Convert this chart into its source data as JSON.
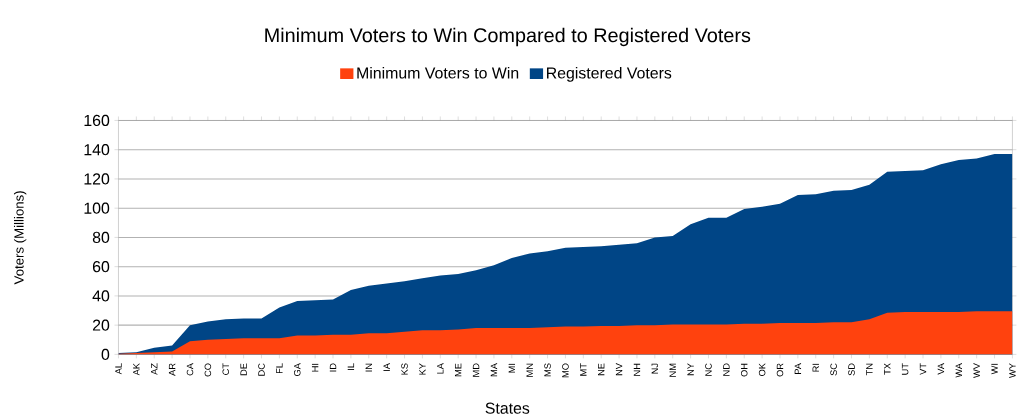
{
  "chart_data": {
    "type": "area",
    "title": "Minimum Voters to Win Compared to Registered Voters",
    "xlabel": "States",
    "ylabel": "Voters (Millions)",
    "categories": [
      "AL",
      "AK",
      "AZ",
      "AR",
      "CA",
      "CO",
      "CT",
      "DE",
      "DC",
      "FL",
      "GA",
      "HI",
      "ID",
      "IL",
      "IN",
      "IA",
      "KS",
      "KY",
      "LA",
      "ME",
      "MD",
      "MA",
      "MI",
      "MN",
      "MS",
      "MO",
      "MT",
      "NE",
      "NV",
      "NH",
      "NJ",
      "NM",
      "NY",
      "NC",
      "ND",
      "OH",
      "OK",
      "OR",
      "PA",
      "RI",
      "SC",
      "SD",
      "TN",
      "TX",
      "UT",
      "VT",
      "VA",
      "WA",
      "WV",
      "WI",
      "WY"
    ],
    "series": [
      {
        "name": "Registered Voters",
        "color": "#004586",
        "values": [
          1,
          1.5,
          4.5,
          6,
          20,
          22.5,
          24,
          24.5,
          24.5,
          32,
          36.5,
          37,
          37.5,
          44,
          47,
          48.5,
          50,
          52,
          54,
          55,
          57.5,
          61,
          66,
          69,
          70.5,
          73,
          73.5,
          74,
          75,
          76,
          80,
          81,
          89,
          93.5,
          93.5,
          99.5,
          101,
          103,
          109,
          109.5,
          112,
          112.5,
          116,
          125,
          125.5,
          126,
          130,
          133,
          134,
          137,
          137
        ]
      },
      {
        "name": "Minimum Voters to Win",
        "color": "#ff420e",
        "values": [
          0.5,
          1,
          1.5,
          2,
          9,
          10,
          10.5,
          11,
          11,
          11,
          13,
          13,
          13.5,
          13.5,
          14.5,
          14.5,
          15.5,
          16.5,
          16.5,
          17,
          18,
          18,
          18,
          18,
          18.5,
          19,
          19,
          19.5,
          19.5,
          20,
          20,
          20.5,
          20.5,
          20.5,
          20.5,
          21,
          21,
          21.5,
          21.5,
          21.5,
          22,
          22,
          24,
          28.5,
          29,
          29,
          29,
          29,
          29.5,
          29.5,
          29.5
        ]
      }
    ],
    "ylim": [
      0,
      160
    ],
    "yticks": [
      0,
      20,
      40,
      60,
      80,
      100,
      120,
      140,
      160
    ],
    "grid": "y",
    "legend": "top"
  }
}
